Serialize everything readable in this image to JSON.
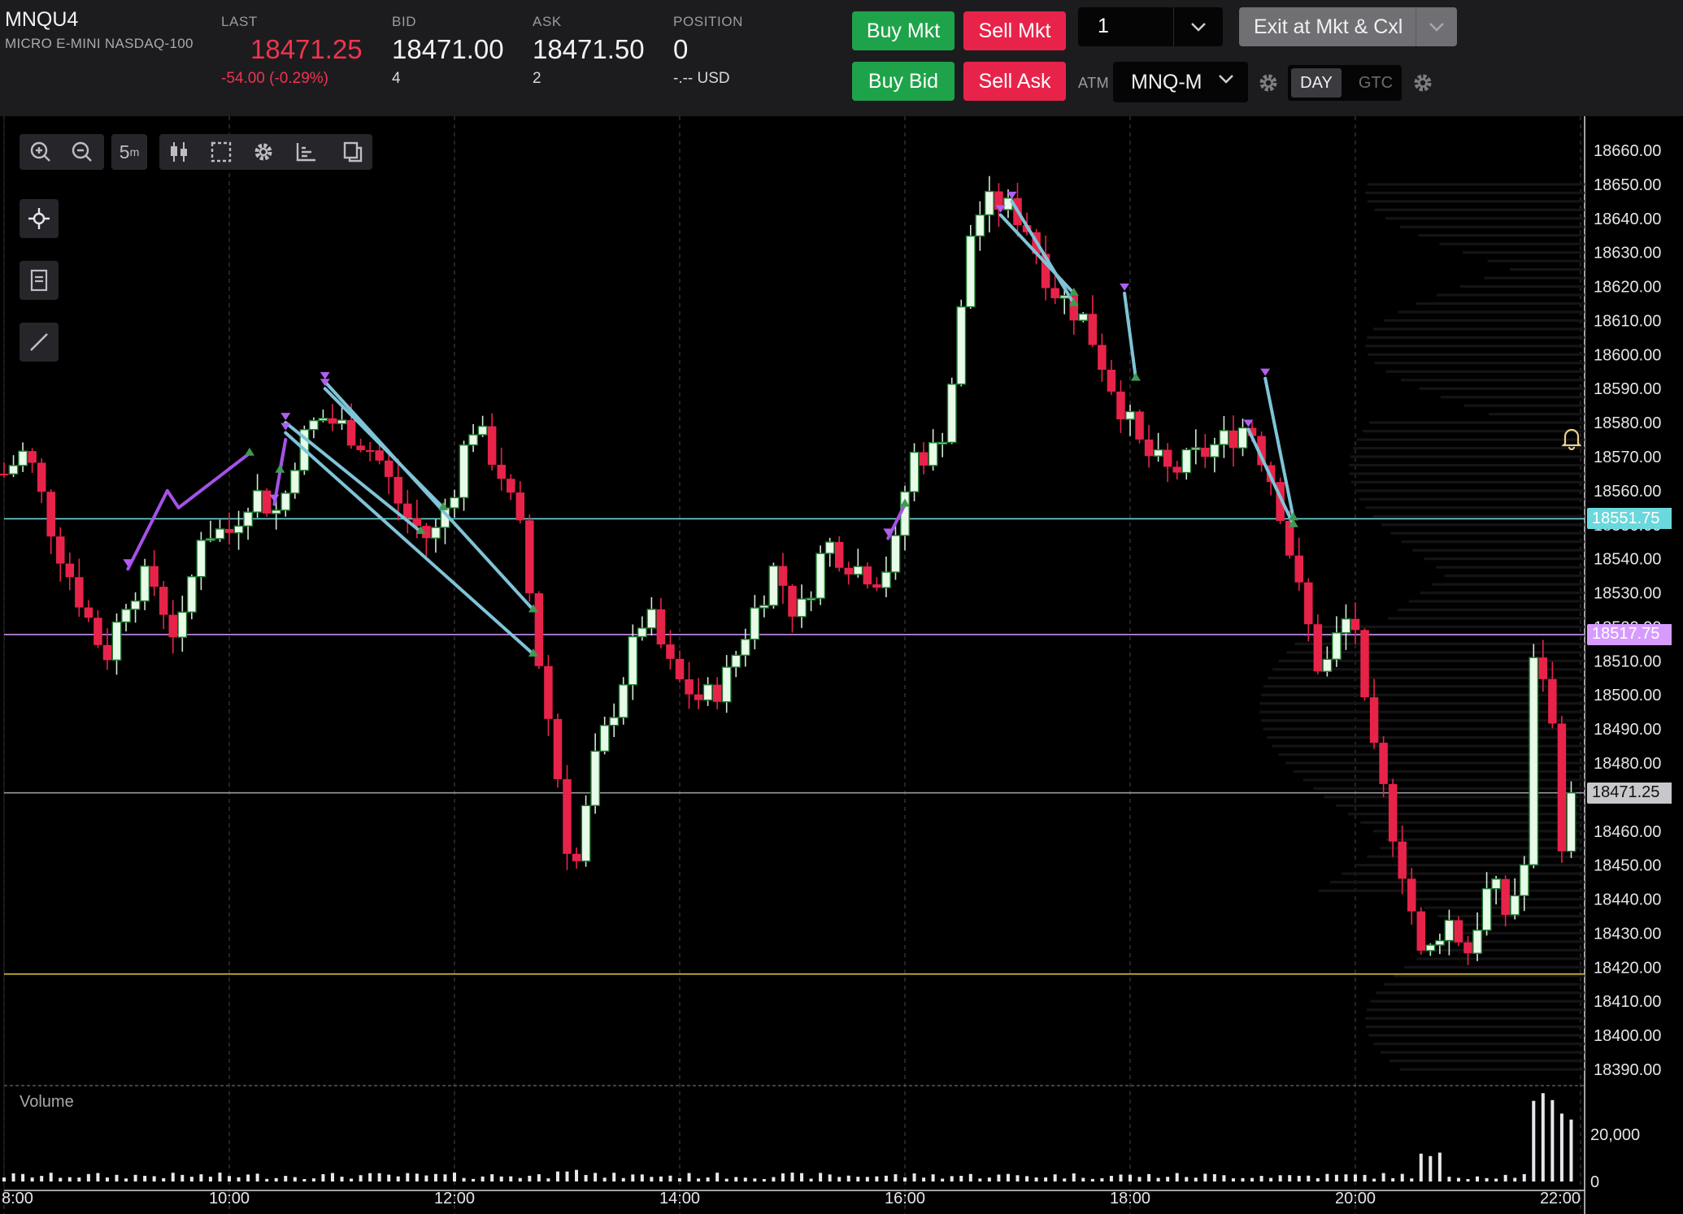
{
  "header": {
    "symbol": "MNQU4",
    "description": "MICRO E-MINI NASDAQ-100",
    "last_label": "LAST",
    "last_value": "18471.25",
    "last_change": "-54.00 (-0.29%)",
    "bid_label": "BID",
    "bid_value": "18471.00",
    "bid_size": "4",
    "ask_label": "ASK",
    "ask_value": "18471.50",
    "ask_size": "2",
    "position_label": "POSITION",
    "position_value": "0",
    "position_pnl": "-.-- USD"
  },
  "order_panel": {
    "buy_mkt": "Buy Mkt",
    "sell_mkt": "Sell Mkt",
    "buy_bid": "Buy Bid",
    "sell_ask": "Sell Ask",
    "quantity": "1",
    "exit_label": "Exit at Mkt & Cxl",
    "atm_label": "ATM",
    "atm_value": "MNQ-M",
    "tif_day": "DAY",
    "tif_gtc": "GTC",
    "tif_selected": "DAY"
  },
  "toolbar": {
    "interval_value": "5",
    "interval_unit": "m",
    "icons": [
      "zoom-in-icon",
      "zoom-out-icon",
      "candles-icon",
      "select-box-icon",
      "settings-icon",
      "axis-icon",
      "copy-icon",
      "crosshair-icon",
      "notes-icon",
      "draw-line-icon"
    ]
  },
  "colors": {
    "up_candle": "#e8fbe8",
    "down_candle": "#e8234a",
    "bid_line": "#6ad8dc",
    "ask_line": "#d79bff",
    "last_line": "#9a9a9e",
    "yellow_line": "#d8c23a",
    "purple_trend": "#a452e6",
    "blue_trend": "#7fc4d8"
  },
  "chart_data": {
    "type": "candlestick",
    "ylim": [
      18384,
      18666
    ],
    "y_ticks": [
      18660,
      18650,
      18640,
      18630,
      18620,
      18610,
      18600,
      18590,
      18580,
      18570,
      18560,
      18550,
      18540,
      18530,
      18520,
      18510,
      18500,
      18490,
      18480,
      18470,
      18460,
      18450,
      18440,
      18430,
      18420,
      18410,
      18400,
      18390
    ],
    "y_tick_labels": [
      "18660.00",
      "18650.00",
      "18640.00",
      "18630.00",
      "18620.00",
      "18610.00",
      "18600.00",
      "18590.00",
      "18580.00",
      "18570.00",
      "18560.00",
      "18550.00",
      "18540.00",
      "18530.00",
      "18520.00",
      "18510.00",
      "18500.00",
      "18490.00",
      "18480.00",
      "18470.00",
      "18460.00",
      "18450.00",
      "18440.00",
      "18430.00",
      "18420.00",
      "18410.00",
      "18400.00",
      "18390.00"
    ],
    "x_ticks": [
      "8:00",
      "10:00",
      "12:00",
      "14:00",
      "16:00",
      "18:00",
      "20:00",
      "22:00"
    ],
    "volume_label": "Volume",
    "volume_ticks": [
      "20,000",
      "0"
    ],
    "price_markers": [
      {
        "label": "18551.75",
        "value": 18551.75,
        "color": "#6ad8dc"
      },
      {
        "label": "18517.75",
        "value": 18517.75,
        "color": "#d79bff"
      },
      {
        "label": "18471.25",
        "value": 18471.25,
        "color": "#9a9a9e"
      }
    ],
    "yellow_line_value": 18418,
    "close_anchors": [
      [
        8.0,
        18565
      ],
      [
        8.2,
        18572
      ],
      [
        8.45,
        18546
      ],
      [
        8.7,
        18526
      ],
      [
        8.9,
        18511
      ],
      [
        9.1,
        18530
      ],
      [
        9.3,
        18535
      ],
      [
        9.55,
        18515
      ],
      [
        9.75,
        18548
      ],
      [
        10.0,
        18548
      ],
      [
        10.2,
        18560
      ],
      [
        10.45,
        18553
      ],
      [
        10.6,
        18572
      ],
      [
        10.8,
        18582
      ],
      [
        11.05,
        18578
      ],
      [
        11.3,
        18571
      ],
      [
        11.55,
        18553
      ],
      [
        11.8,
        18545
      ],
      [
        12.0,
        18562
      ],
      [
        12.15,
        18580
      ],
      [
        12.4,
        18567
      ],
      [
        12.6,
        18546
      ],
      [
        12.75,
        18510
      ],
      [
        12.9,
        18480
      ],
      [
        13.05,
        18445
      ],
      [
        13.25,
        18480
      ],
      [
        13.5,
        18505
      ],
      [
        13.7,
        18525
      ],
      [
        13.95,
        18505
      ],
      [
        14.2,
        18498
      ],
      [
        14.4,
        18504
      ],
      [
        14.6,
        18520
      ],
      [
        14.85,
        18538
      ],
      [
        15.05,
        18522
      ],
      [
        15.3,
        18545
      ],
      [
        15.55,
        18538
      ],
      [
        15.75,
        18535
      ],
      [
        15.9,
        18540
      ],
      [
        16.05,
        18570
      ],
      [
        16.3,
        18572
      ],
      [
        16.45,
        18598
      ],
      [
        16.6,
        18640
      ],
      [
        16.8,
        18645
      ],
      [
        17.05,
        18640
      ],
      [
        17.3,
        18620
      ],
      [
        17.6,
        18610
      ],
      [
        17.85,
        18590
      ],
      [
        18.1,
        18572
      ],
      [
        18.35,
        18565
      ],
      [
        18.6,
        18570
      ],
      [
        18.85,
        18575
      ],
      [
        19.05,
        18580
      ],
      [
        19.3,
        18560
      ],
      [
        19.5,
        18530
      ],
      [
        19.7,
        18505
      ],
      [
        19.9,
        18522
      ],
      [
        20.0,
        18520
      ],
      [
        20.1,
        18490
      ],
      [
        20.3,
        18465
      ],
      [
        20.45,
        18445
      ],
      [
        20.6,
        18420
      ],
      [
        20.8,
        18435
      ],
      [
        21.0,
        18425
      ],
      [
        21.2,
        18445
      ],
      [
        21.35,
        18435
      ],
      [
        21.5,
        18450
      ],
      [
        21.6,
        18520
      ],
      [
        21.75,
        18490
      ],
      [
        21.85,
        18452
      ],
      [
        21.95,
        18471.25
      ]
    ],
    "trend_lines": [
      {
        "color": "purple",
        "points": [
          [
            9.1,
            18537
          ],
          [
            9.45,
            18560
          ],
          [
            9.55,
            18555
          ],
          [
            10.18,
            18571
          ]
        ]
      },
      {
        "color": "purple",
        "points": [
          [
            10.4,
            18556
          ],
          [
            10.5,
            18575
          ],
          [
            10.45,
            18566
          ]
        ]
      },
      {
        "color": "purple",
        "points": [
          [
            15.85,
            18546
          ],
          [
            16.0,
            18556
          ]
        ]
      },
      {
        "color": "blue",
        "points": [
          [
            10.5,
            18580
          ],
          [
            11.7,
            18548
          ]
        ]
      },
      {
        "color": "blue",
        "points": [
          [
            10.5,
            18577
          ],
          [
            12.7,
            18512
          ]
        ]
      },
      {
        "color": "blue",
        "points": [
          [
            10.85,
            18592
          ],
          [
            12.7,
            18525
          ]
        ]
      },
      {
        "color": "blue",
        "points": [
          [
            10.85,
            18590
          ],
          [
            11.9,
            18555
          ]
        ]
      },
      {
        "color": "blue",
        "points": [
          [
            16.95,
            18645
          ],
          [
            17.5,
            18615
          ]
        ]
      },
      {
        "color": "blue",
        "points": [
          [
            16.85,
            18641
          ],
          [
            17.5,
            18618
          ]
        ]
      },
      {
        "color": "blue",
        "points": [
          [
            17.95,
            18618
          ],
          [
            18.05,
            18593
          ]
        ]
      },
      {
        "color": "blue",
        "points": [
          [
            19.05,
            18578
          ],
          [
            19.45,
            18550
          ]
        ]
      },
      {
        "color": "blue",
        "points": [
          [
            19.2,
            18593
          ],
          [
            19.45,
            18552
          ]
        ]
      }
    ]
  }
}
